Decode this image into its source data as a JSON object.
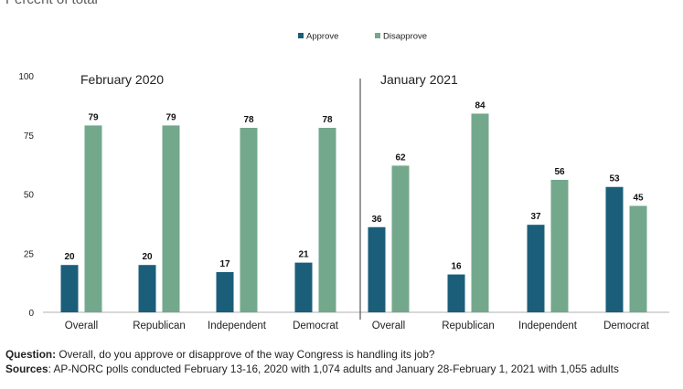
{
  "subtitle": "Percent of total",
  "chart_data": {
    "type": "bar",
    "ylim": [
      0,
      100
    ],
    "yticks": [
      0,
      25,
      50,
      75,
      100
    ],
    "grid": false,
    "legend": {
      "placement": "top-center",
      "entries": [
        "Approve",
        "Disapprove"
      ]
    },
    "colors": {
      "Approve": "#1b5e7a",
      "Disapprove": "#74a88c"
    },
    "panels": [
      {
        "title": "February 2020",
        "categories": [
          "Overall",
          "Republican",
          "Independent",
          "Democrat"
        ],
        "series": [
          {
            "name": "Approve",
            "values": [
              20,
              20,
              17,
              21
            ]
          },
          {
            "name": "Disapprove",
            "values": [
              79,
              79,
              78,
              78
            ]
          }
        ]
      },
      {
        "title": "January 2021",
        "categories": [
          "Overall",
          "Republican",
          "Independent",
          "Democrat"
        ],
        "series": [
          {
            "name": "Approve",
            "values": [
              36,
              16,
              37,
              53
            ]
          },
          {
            "name": "Disapprove",
            "values": [
              62,
              84,
              56,
              45
            ]
          }
        ]
      }
    ]
  },
  "notes": {
    "question_label": "Question:",
    "question_text": " Overall, do you approve or disapprove of the way Congress is handling its job?",
    "sources_label": "Sources",
    "sources_text": ": AP-NORC polls conducted February 13-16, 2020 with 1,074 adults and January 28-February 1, 2021 with 1,055 adults"
  }
}
